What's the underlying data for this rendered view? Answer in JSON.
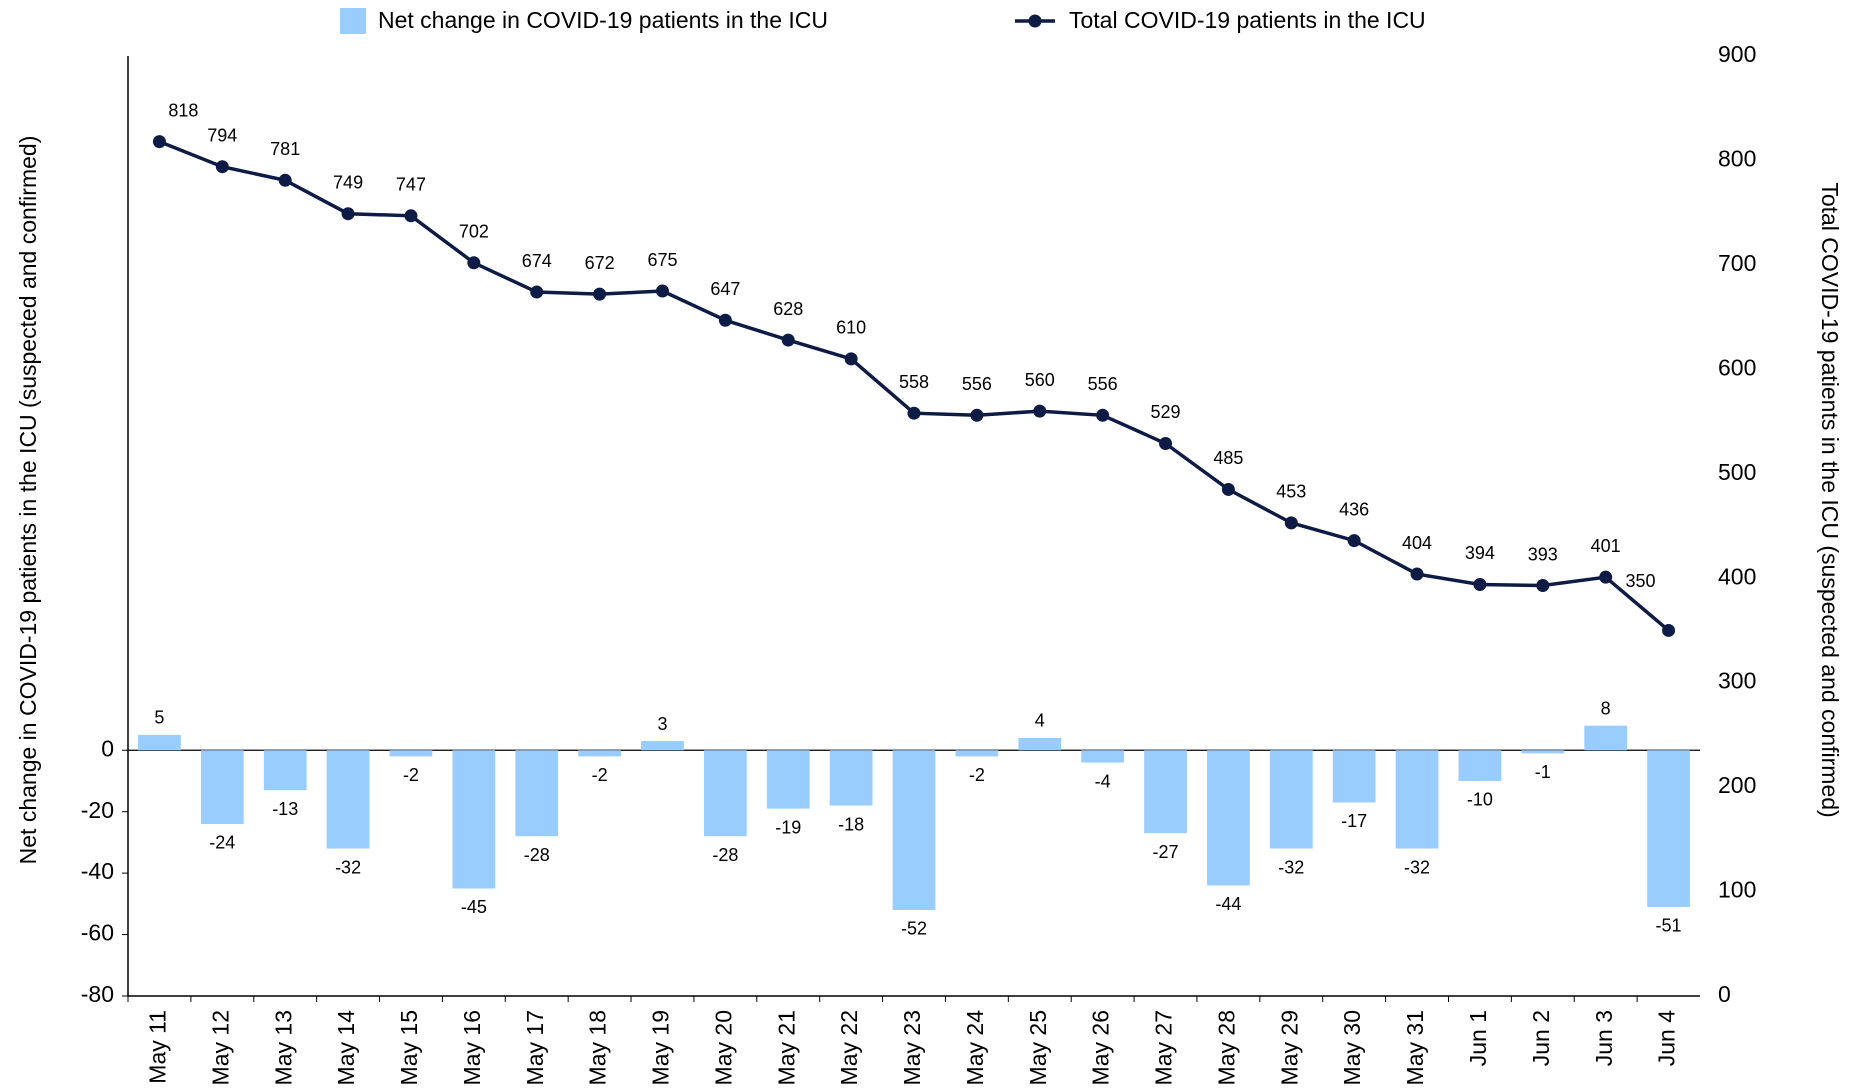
{
  "chart_data": {
    "type": "bar_line",
    "categories": [
      "May 11",
      "May 12",
      "May 13",
      "May 14",
      "May 15",
      "May 16",
      "May 17",
      "May 18",
      "May 19",
      "May 20",
      "May 21",
      "May 22",
      "May 23",
      "May 24",
      "May 25",
      "May 26",
      "May 27",
      "May 28",
      "May 29",
      "May 30",
      "May 31",
      "Jun 1",
      "Jun 2",
      "Jun 3",
      "Jun 4"
    ],
    "series": [
      {
        "name": "Net change in COVID-19 patients in the ICU",
        "type": "bar",
        "color": "#99ccff",
        "values": [
          5,
          -24,
          -13,
          -32,
          -2,
          -45,
          -28,
          -2,
          3,
          -28,
          -19,
          -18,
          -52,
          -2,
          4,
          -4,
          -27,
          -44,
          -32,
          -17,
          -32,
          -10,
          -1,
          8,
          -51
        ]
      },
      {
        "name": "Total COVID-19 patients in the ICU",
        "type": "line",
        "axis": "y2",
        "color": "#0d1b45",
        "values": [
          818,
          794,
          781,
          749,
          747,
          702,
          674,
          672,
          675,
          647,
          628,
          610,
          558,
          556,
          560,
          556,
          529,
          485,
          453,
          436,
          404,
          394,
          393,
          401,
          350
        ]
      }
    ],
    "ylabel": "Net change in COVID-19 patients in the ICU (suspected and confirmed)",
    "y2label": "Total COVID-19 patients in the ICU (suspected and confirmed)",
    "ylim": [
      -80,
      226
    ],
    "yticks": [
      -80,
      -60,
      -40,
      -20,
      0
    ],
    "y2lim": [
      0,
      900
    ],
    "y2ticks": [
      0,
      100,
      200,
      300,
      400,
      500,
      600,
      700,
      800,
      900
    ],
    "legend": "top"
  }
}
